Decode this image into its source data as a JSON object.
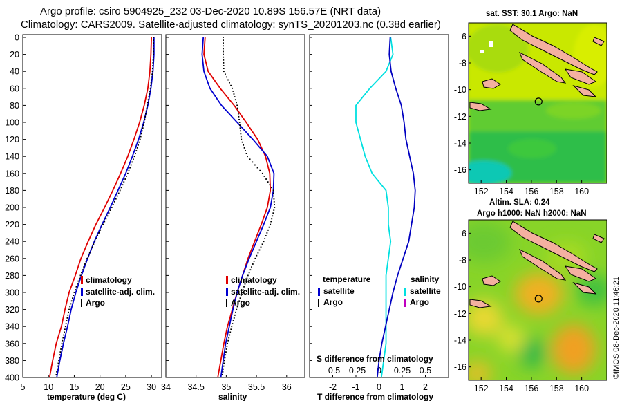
{
  "title_line1": "Argo profile: csiro 5904925_232 03-Dec-2020 10.89S 156.57E (NRT data)",
  "title_line2": "Climatology: CARS2009. Satellite-adjusted climatology: synTS_20201203.nc (0.38d earlier)",
  "colors": {
    "climatology": "#e00000",
    "satellite": "#0000d0",
    "argo": "#000000",
    "t_diff": "#00e0e0",
    "s_diff": "#0000c0",
    "argo_s_diff": "#c000c0"
  },
  "depth_axis": {
    "ylim": [
      400,
      0
    ],
    "ticks": [
      0,
      20,
      40,
      60,
      80,
      100,
      120,
      140,
      160,
      180,
      200,
      220,
      240,
      260,
      280,
      300,
      320,
      340,
      360,
      380,
      400
    ]
  },
  "chart_data": [
    {
      "id": "temperature",
      "type": "line",
      "xlabel": "temperature (deg C)",
      "ylabel": "",
      "xlim": [
        5,
        32
      ],
      "xticks": [
        5,
        10,
        15,
        20,
        25,
        30
      ],
      "legend": [
        "climatology",
        "satellite-adj. clim.",
        "Argo"
      ],
      "series": [
        {
          "name": "climatology",
          "color": "#e00000",
          "style": "line",
          "x": [
            30.0,
            29.9,
            29.7,
            29.3,
            28.6,
            27.7,
            26.6,
            25.4,
            24.0,
            22.5,
            20.9,
            19.2,
            17.7,
            16.3,
            15.2,
            14.0,
            13.2,
            12.5,
            11.5,
            10.8,
            10.2
          ],
          "y": [
            0,
            20,
            40,
            60,
            80,
            100,
            120,
            140,
            160,
            180,
            200,
            220,
            240,
            260,
            280,
            300,
            320,
            340,
            360,
            380,
            400
          ]
        },
        {
          "name": "satellite-adj. clim.",
          "color": "#0000d0",
          "style": "line",
          "x": [
            30.5,
            30.5,
            30.3,
            29.9,
            29.3,
            28.5,
            27.5,
            26.3,
            25.0,
            23.5,
            22.0,
            20.4,
            18.9,
            17.6,
            16.4,
            15.3,
            14.4,
            13.7,
            12.9,
            12.2,
            11.6
          ],
          "y": [
            0,
            20,
            40,
            60,
            80,
            100,
            120,
            140,
            160,
            180,
            200,
            220,
            240,
            260,
            280,
            300,
            320,
            340,
            360,
            380,
            400
          ]
        },
        {
          "name": "Argo",
          "color": "#000000",
          "style": "dots",
          "x": [
            30.4,
            30.4,
            30.2,
            29.8,
            29.2,
            28.6,
            27.8,
            26.7,
            25.4,
            23.9,
            22.3,
            20.6,
            19.0,
            17.5,
            16.2,
            15.0,
            14.0,
            13.3,
            12.6,
            12.0,
            11.4
          ],
          "y": [
            0,
            20,
            40,
            60,
            80,
            100,
            120,
            140,
            160,
            180,
            200,
            220,
            240,
            260,
            280,
            300,
            320,
            340,
            360,
            380,
            400
          ]
        }
      ]
    },
    {
      "id": "salinity",
      "type": "line",
      "xlabel": "salinity",
      "ylabel": "",
      "xlim": [
        34,
        36.3
      ],
      "xticks": [
        34,
        34.5,
        35,
        35.5,
        36
      ],
      "legend": [
        "climatology",
        "satellite-adj. clim.",
        "Argo"
      ],
      "series": [
        {
          "name": "climatology",
          "color": "#e00000",
          "style": "line",
          "x": [
            34.65,
            34.63,
            34.7,
            34.9,
            35.13,
            35.33,
            35.52,
            35.65,
            35.72,
            35.73,
            35.68,
            35.58,
            35.47,
            35.36,
            35.27,
            35.18,
            35.1,
            35.02,
            34.96,
            34.91,
            34.86
          ],
          "y": [
            0,
            20,
            40,
            60,
            80,
            100,
            120,
            140,
            160,
            180,
            200,
            220,
            240,
            260,
            280,
            300,
            320,
            340,
            360,
            380,
            400
          ]
        },
        {
          "name": "satellite-adj. clim.",
          "color": "#0000d0",
          "style": "line",
          "x": [
            34.62,
            34.6,
            34.63,
            34.73,
            34.92,
            35.18,
            35.44,
            35.68,
            35.79,
            35.78,
            35.73,
            35.62,
            35.5,
            35.38,
            35.27,
            35.18,
            35.11,
            35.05,
            34.99,
            34.95,
            34.91
          ],
          "y": [
            0,
            20,
            40,
            60,
            80,
            100,
            120,
            140,
            160,
            180,
            200,
            220,
            240,
            260,
            280,
            300,
            320,
            340,
            360,
            380,
            400
          ]
        },
        {
          "name": "Argo",
          "color": "#000000",
          "style": "dots",
          "x": [
            34.95,
            34.95,
            34.96,
            35.1,
            35.18,
            35.22,
            35.25,
            35.35,
            35.6,
            35.78,
            35.8,
            35.73,
            35.62,
            35.48,
            35.36,
            35.26,
            35.17,
            35.09,
            35.02,
            34.97,
            34.93
          ],
          "y": [
            0,
            20,
            40,
            60,
            80,
            100,
            120,
            140,
            160,
            180,
            200,
            220,
            240,
            260,
            280,
            300,
            320,
            340,
            360,
            380,
            400
          ]
        }
      ]
    },
    {
      "id": "differences",
      "type": "line",
      "xlabel": "T difference from climatology",
      "top_label": "S difference from climatology",
      "xlim": [
        -3,
        3
      ],
      "xticks": [
        -2,
        -1,
        0,
        1,
        2
      ],
      "s_xlim": [
        -0.75,
        0.75
      ],
      "s_xticks": [
        -0.5,
        -0.25,
        0,
        0.25,
        0.5
      ],
      "s_xtick_labels": [
        "-0.5",
        "-0.25",
        "0",
        "0.25",
        "0.5"
      ],
      "legend": {
        "temperature_header": "temperature",
        "salinity_header": "salinity",
        "temperature_items": [
          "satellite",
          "Argo"
        ],
        "salinity_items": [
          "satellite",
          "Argo"
        ]
      },
      "series": [
        {
          "name": "T difference (satellite)",
          "color": "#00e0e0",
          "x": [
            0.5,
            0.6,
            0.3,
            -0.4,
            -1.0,
            -1.0,
            -0.8,
            -0.6,
            -0.3,
            0.3,
            0.4,
            0.4,
            0.5,
            0.4,
            0.3,
            0.3,
            0.3,
            0.3,
            0.3,
            0.2,
            0.1
          ],
          "y": [
            0,
            20,
            40,
            60,
            80,
            100,
            120,
            140,
            160,
            180,
            200,
            220,
            240,
            260,
            280,
            300,
            320,
            340,
            360,
            380,
            400
          ]
        },
        {
          "name": "S difference (satellite)",
          "color": "#0000c0",
          "x": [
            0.12,
            0.11,
            0.13,
            0.18,
            0.24,
            0.27,
            0.29,
            0.33,
            0.37,
            0.39,
            0.38,
            0.35,
            0.32,
            0.26,
            0.2,
            0.15,
            0.11,
            0.07,
            0.03,
            0.0,
            -0.02
          ],
          "y": [
            0,
            20,
            40,
            60,
            80,
            100,
            120,
            140,
            160,
            180,
            200,
            220,
            240,
            260,
            280,
            300,
            320,
            340,
            360,
            380,
            400
          ]
        }
      ]
    }
  ],
  "maps": {
    "sst": {
      "title": "sat. SST: 30.1 Argo: NaN",
      "lon_ticks": [
        152,
        154,
        156,
        158,
        160
      ],
      "lat_ticks": [
        -6,
        -8,
        -10,
        -12,
        -14,
        -16
      ],
      "lon_range": [
        151,
        162
      ],
      "lat_range": [
        -17,
        -5
      ],
      "marker": {
        "lon": 156.57,
        "lat": -10.89
      }
    },
    "sla": {
      "title_line1": "Altim. SLA: 0.24",
      "title_line2": "Argo h1000: NaN h2000: NaN",
      "lon_ticks": [
        152,
        154,
        156,
        158,
        160
      ],
      "lat_ticks": [
        -6,
        -8,
        -10,
        -12,
        -14,
        -16
      ],
      "lon_range": [
        151,
        162
      ],
      "lat_range": [
        -17,
        -5
      ],
      "marker": {
        "lon": 156.57,
        "lat": -10.89
      }
    }
  },
  "timestamp": "©IMOS 08-Dec-2020 11:46:21"
}
